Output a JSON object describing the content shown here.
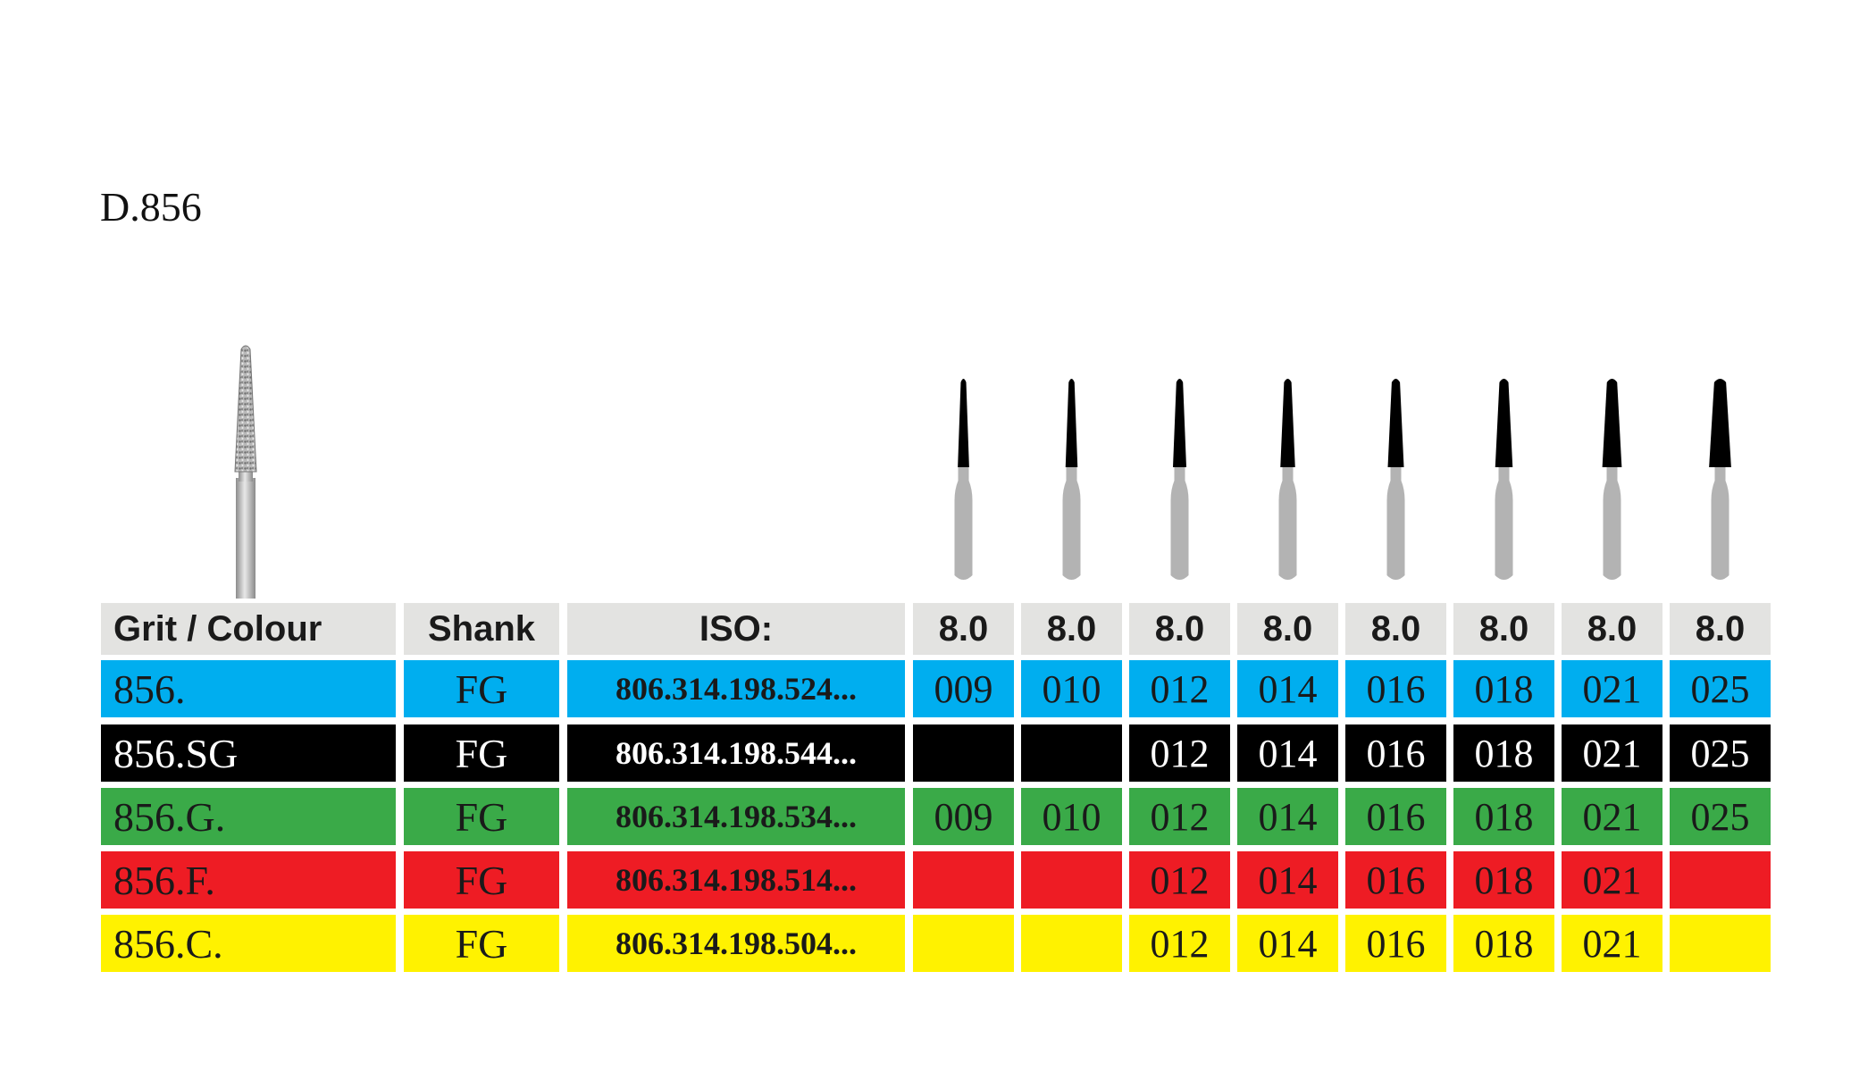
{
  "product_code": "D.856",
  "icons": {
    "main_bur": "diamond-tapered-bur-icon",
    "size_bur": "tapered-bur-silhouette-icon"
  },
  "header": {
    "grit_colour": "Grit / Colour",
    "shank": "Shank",
    "iso": "ISO:",
    "sizes": [
      "8.0",
      "8.0",
      "8.0",
      "8.0",
      "8.0",
      "8.0",
      "8.0",
      "8.0"
    ]
  },
  "rows": [
    {
      "grit": "856.",
      "shank": "FG",
      "iso": "806.314.198.524...",
      "colour": "#00aeef",
      "text_color": "#1a1a1a",
      "sizes": [
        "009",
        "010",
        "012",
        "014",
        "016",
        "018",
        "021",
        "025"
      ]
    },
    {
      "grit": "856.SG",
      "shank": "FG",
      "iso": "806.314.198.544...",
      "colour": "#000000",
      "text_color": "#ffffff",
      "sizes": [
        "",
        "",
        "012",
        "014",
        "016",
        "018",
        "021",
        "025"
      ]
    },
    {
      "grit": "856.G.",
      "shank": "FG",
      "iso": "806.314.198.534...",
      "colour": "#3aaa48",
      "text_color": "#1a1a1a",
      "sizes": [
        "009",
        "010",
        "012",
        "014",
        "016",
        "018",
        "021",
        "025"
      ]
    },
    {
      "grit": "856.F.",
      "shank": "FG",
      "iso": "806.314.198.514...",
      "colour": "#ee1c24",
      "text_color": "#1a1a1a",
      "sizes": [
        "",
        "",
        "012",
        "014",
        "016",
        "018",
        "021",
        ""
      ]
    },
    {
      "grit": "856.C.",
      "shank": "FG",
      "iso": "806.314.198.504...",
      "colour": "#fff200",
      "text_color": "#1a1a1a",
      "sizes": [
        "",
        "",
        "012",
        "014",
        "016",
        "018",
        "021",
        ""
      ]
    }
  ]
}
